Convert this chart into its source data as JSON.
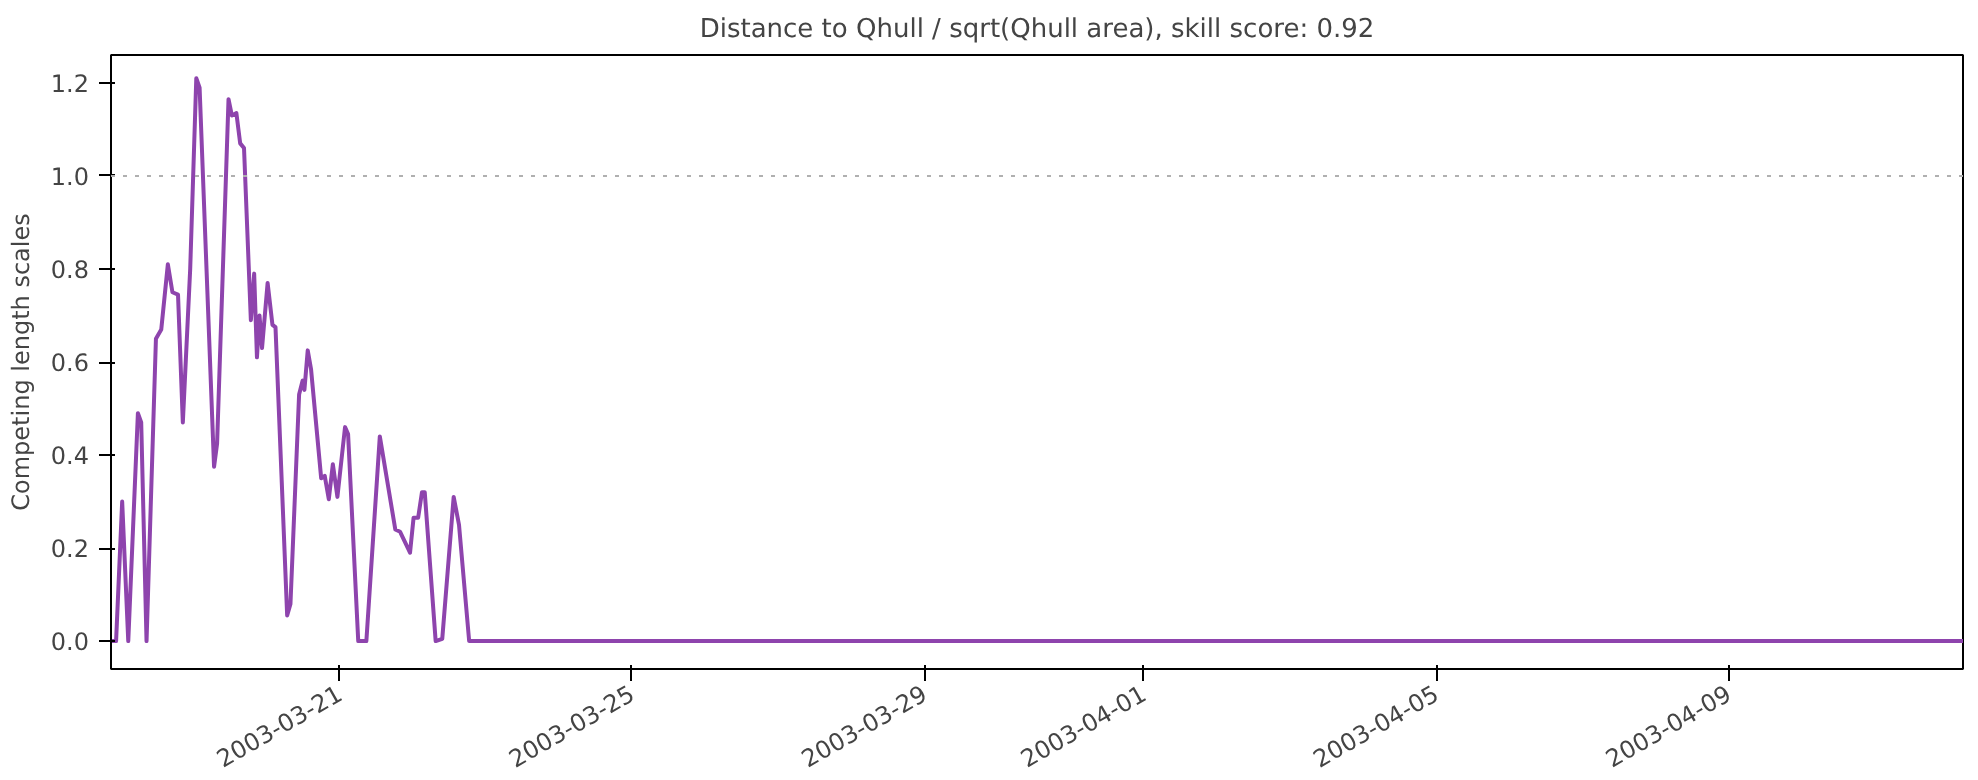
{
  "chart_data": {
    "type": "line",
    "title": "Distance to Qhull / sqrt(Qhull area), skill score: 0.92",
    "ylabel": "Competing length scales",
    "x": [
      "2003-03-17T21:00",
      "2003-03-17T22:40",
      "2003-03-18T00:40",
      "2003-03-18T02:40",
      "2003-03-18T05:50",
      "2003-03-18T06:55",
      "2003-03-18T08:40",
      "2003-03-18T11:45",
      "2003-03-18T13:30",
      "2003-03-18T15:40",
      "2003-03-18T17:10",
      "2003-03-18T19:00",
      "2003-03-18T20:35",
      "2003-03-18T23:00",
      "2003-03-19T01:00",
      "2003-03-19T02:05",
      "2003-03-19T06:50",
      "2003-03-19T07:50",
      "2003-03-19T11:35",
      "2003-03-19T12:40",
      "2003-03-19T14:10",
      "2003-03-19T15:25",
      "2003-03-19T16:40",
      "2003-03-19T18:55",
      "2003-03-19T20:00",
      "2003-03-19T20:55",
      "2003-03-19T21:45",
      "2003-03-19T22:35",
      "2003-03-20T00:25",
      "2003-03-20T02:00",
      "2003-03-20T03:00",
      "2003-03-20T06:50",
      "2003-03-20T07:55",
      "2003-03-20T10:45",
      "2003-03-20T11:55",
      "2003-03-20T12:30",
      "2003-03-20T13:35",
      "2003-03-20T14:40",
      "2003-03-20T18:00",
      "2003-03-20T19:10",
      "2003-03-20T20:30",
      "2003-03-20T21:50",
      "2003-03-20T23:20",
      "2003-03-21T01:50",
      "2003-03-21T02:50",
      "2003-03-21T06:10",
      "2003-03-21T08:50",
      "2003-03-21T13:15",
      "2003-03-21T18:20",
      "2003-03-21T19:55",
      "2003-03-21T23:10",
      "2003-03-22T00:20",
      "2003-03-22T01:50",
      "2003-03-22T03:05",
      "2003-03-22T04:00",
      "2003-03-22T07:35",
      "2003-03-22T09:45",
      "2003-03-22T13:30",
      "2003-03-22T15:15",
      "2003-03-22T18:35",
      "2003-04-12T05:00"
    ],
    "series": [
      {
        "color": "#8e44ad",
        "values": [
          0,
          0,
          0.3,
          0,
          0.49,
          0.47,
          0,
          0.65,
          0.67,
          0.81,
          0.75,
          0.745,
          0.47,
          0.8,
          1.21,
          1.19,
          0.375,
          0.425,
          1.165,
          1.13,
          1.135,
          1.07,
          1.06,
          0.69,
          0.79,
          0.61,
          0.7,
          0.63,
          0.77,
          0.68,
          0.675,
          0.055,
          0.08,
          0.53,
          0.56,
          0.54,
          0.625,
          0.585,
          0.35,
          0.355,
          0.305,
          0.38,
          0.31,
          0.46,
          0.445,
          0,
          0,
          0.44,
          0.24,
          0.235,
          0.19,
          0.265,
          0.265,
          0.32,
          0.32,
          0,
          0.005,
          0.31,
          0.25,
          0,
          0
        ]
      }
    ],
    "xlim": [
      "2003-03-17T21:00",
      "2003-04-12T05:00"
    ],
    "xticks": [
      "2003-03-21",
      "2003-03-25",
      "2003-03-29",
      "2003-04-01",
      "2003-04-05",
      "2003-04-09"
    ],
    "ylim": [
      -0.06,
      1.26
    ],
    "yticks": [
      {
        "value": 0,
        "label": "0.0"
      },
      {
        "value": 0.2,
        "label": "0.2"
      },
      {
        "value": 0.4,
        "label": "0.4"
      },
      {
        "value": 0.6,
        "label": "0.6"
      },
      {
        "value": 0.8,
        "label": "0.8"
      },
      {
        "value": 1,
        "label": "1.0"
      },
      {
        "value": 1.2,
        "label": "1.2"
      }
    ],
    "ref_lines": [
      {
        "axis": "y",
        "value": 1.0,
        "color": "#b0b0b0",
        "line_style": "dotted"
      }
    ],
    "grid": false,
    "line_style": "solid",
    "marker": "none"
  }
}
